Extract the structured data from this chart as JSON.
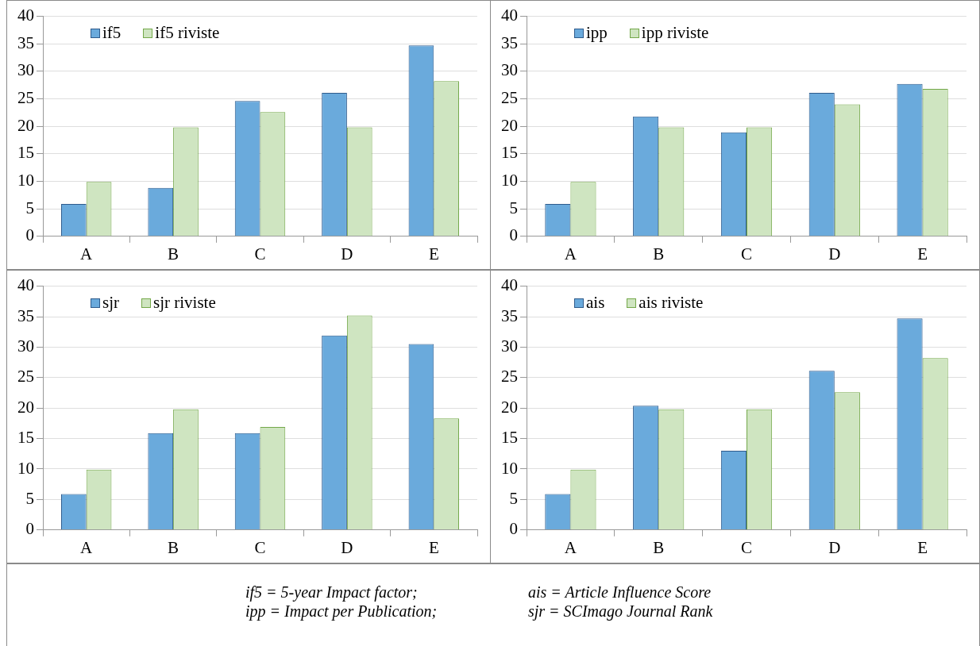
{
  "chart_data": [
    {
      "type": "bar",
      "categories": [
        "A",
        "B",
        "C",
        "D",
        "E"
      ],
      "ylim": [
        0,
        40
      ],
      "yticks": [
        0,
        5,
        10,
        15,
        20,
        25,
        30,
        35,
        40
      ],
      "grid": "y",
      "legend": "top left",
      "series": [
        {
          "name": "if5",
          "color": "#6aaadc",
          "values": [
            5.9,
            8.8,
            24.6,
            26.1,
            34.7
          ]
        },
        {
          "name": "if5 riviste",
          "color": "#cfe5c1",
          "values": [
            9.9,
            19.8,
            22.6,
            19.8,
            28.2
          ]
        }
      ]
    },
    {
      "type": "bar",
      "categories": [
        "A",
        "B",
        "C",
        "D",
        "E"
      ],
      "ylim": [
        0,
        40
      ],
      "yticks": [
        0,
        5,
        10,
        15,
        20,
        25,
        30,
        35,
        40
      ],
      "grid": "y",
      "legend": "top left",
      "series": [
        {
          "name": "ipp",
          "color": "#6aaadc",
          "values": [
            5.9,
            21.8,
            18.9,
            26.1,
            27.7
          ]
        },
        {
          "name": "ipp riviste",
          "color": "#cfe5c1",
          "values": [
            9.9,
            19.8,
            19.8,
            24.0,
            26.8
          ]
        }
      ]
    },
    {
      "type": "bar",
      "categories": [
        "A",
        "B",
        "C",
        "D",
        "E"
      ],
      "ylim": [
        0,
        40
      ],
      "yticks": [
        0,
        5,
        10,
        15,
        20,
        25,
        30,
        35,
        40
      ],
      "grid": "y",
      "legend": "top left",
      "series": [
        {
          "name": "sjr",
          "color": "#6aaadc",
          "values": [
            5.9,
            15.9,
            15.9,
            31.9,
            30.5
          ]
        },
        {
          "name": "sjr riviste",
          "color": "#cfe5c1",
          "values": [
            9.9,
            19.8,
            16.9,
            35.2,
            18.3
          ]
        }
      ]
    },
    {
      "type": "bar",
      "categories": [
        "A",
        "B",
        "C",
        "D",
        "E"
      ],
      "ylim": [
        0,
        40
      ],
      "yticks": [
        0,
        5,
        10,
        15,
        20,
        25,
        30,
        35,
        40
      ],
      "grid": "y",
      "legend": "top left",
      "series": [
        {
          "name": "ais",
          "color": "#6aaadc",
          "values": [
            5.9,
            20.4,
            13.0,
            26.1,
            34.7
          ]
        },
        {
          "name": "ais riviste",
          "color": "#cfe5c1",
          "values": [
            9.9,
            19.8,
            19.8,
            22.6,
            28.2
          ]
        }
      ]
    },
    {
      "type": "other",
      "annotations": [
        "if5 = 5-year Impact factor;",
        "ais = Article Influence Score",
        "ipp = Impact per Publication;",
        "sjr = SCImago Journal Rank"
      ]
    }
  ]
}
